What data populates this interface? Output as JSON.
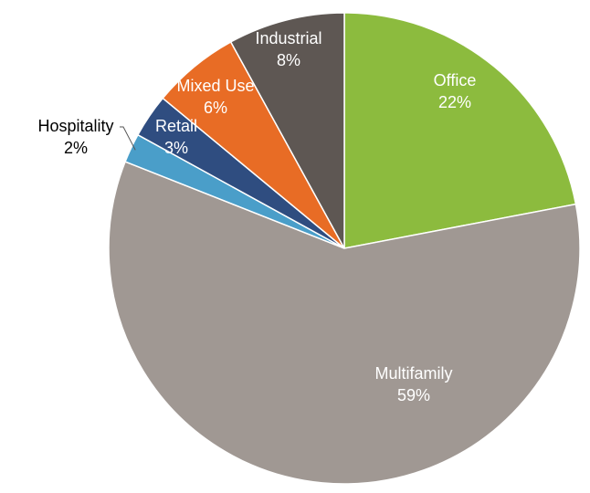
{
  "chart_data": {
    "type": "pie",
    "title": "",
    "slices": [
      {
        "label": "Office",
        "value": 22,
        "display": "22%",
        "color": "#8cbb3e",
        "text_color": "#ffffff"
      },
      {
        "label": "Multifamily",
        "value": 59,
        "display": "59%",
        "color": "#a09893",
        "text_color": "#ffffff"
      },
      {
        "label": "Hospitality",
        "value": 2,
        "display": "2%",
        "color": "#4a9ec9",
        "text_color": "#000000"
      },
      {
        "label": "Retail",
        "value": 3,
        "display": "3%",
        "color": "#2f4d80",
        "text_color": "#ffffff"
      },
      {
        "label": "Mixed Use",
        "value": 6,
        "display": "6%",
        "color": "#e86c25",
        "text_color": "#ffffff"
      },
      {
        "label": "Industrial",
        "value": 8,
        "display": "8%",
        "color": "#5e5753",
        "text_color": "#ffffff"
      }
    ],
    "start_angle_deg": 0,
    "direction": "clockwise"
  }
}
